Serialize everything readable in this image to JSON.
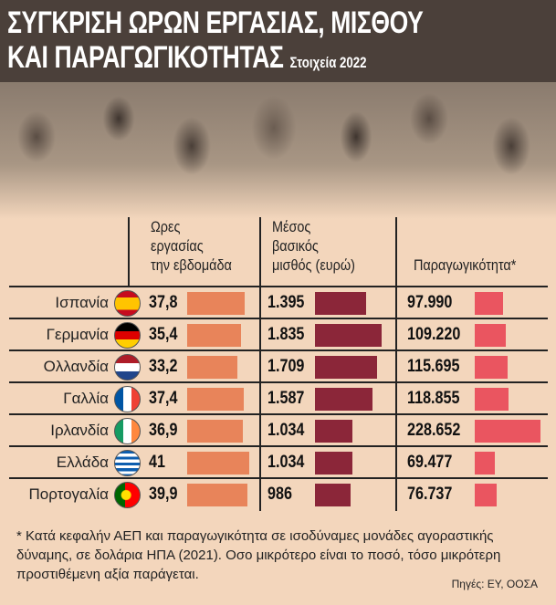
{
  "title": {
    "line1": "ΣΥΓΚΡΙΣΗ ΩΡΩΝ ΕΡΓΑΣΙΑΣ, ΜΙΣΘΟΥ",
    "line2": "ΚΑΙ ΠΑΡΑΓΩΓΙΚΟΤΗΤΑΣ",
    "subtitle": "Στοιχεία 2022"
  },
  "chart_data": {
    "type": "table",
    "columns": [
      {
        "label": [
          "Ωρες",
          "εργασίας",
          "την εβδομάδα"
        ],
        "color": "#e8845a"
      },
      {
        "label": [
          "Μέσος",
          "βασικός",
          "μισθός (ευρώ)"
        ],
        "color": "#8b2639"
      },
      {
        "label": [
          "Παραγωγικότητα*"
        ],
        "color": "#ea5560"
      }
    ],
    "rows": [
      {
        "country": "Ισπανία",
        "flag": "spain-flag",
        "hours": "37,8",
        "salary": "1.395",
        "productivity": "97.990",
        "v": [
          37.8,
          1395,
          97990
        ]
      },
      {
        "country": "Γερμανία",
        "flag": "germany-flag",
        "hours": "35,4",
        "salary": "1.835",
        "productivity": "109.220",
        "v": [
          35.4,
          1835,
          109220
        ]
      },
      {
        "country": "Ολλανδία",
        "flag": "netherlands-flag",
        "hours": "33,2",
        "salary": "1.709",
        "productivity": "115.695",
        "v": [
          33.2,
          1709,
          115695
        ]
      },
      {
        "country": "Γαλλία",
        "flag": "france-flag",
        "hours": "37,4",
        "salary": "1.587",
        "productivity": "118.855",
        "v": [
          37.4,
          1587,
          118855
        ]
      },
      {
        "country": "Ιρλανδία",
        "flag": "ireland-flag",
        "hours": "36,9",
        "salary": "1.034",
        "productivity": "228.652",
        "v": [
          36.9,
          1034,
          228652
        ]
      },
      {
        "country": "Ελλάδα",
        "flag": "greece-flag",
        "hours": "41",
        "salary": "1.034",
        "productivity": "69.477",
        "v": [
          41,
          1034,
          69477
        ]
      },
      {
        "country": "Πορτογαλία",
        "flag": "portugal-flag",
        "hours": "39,9",
        "salary": "986",
        "productivity": "76.737",
        "v": [
          39.9,
          986,
          76737
        ]
      }
    ]
  },
  "footnote": "* Κατά κεφαλήν ΑΕΠ και παραγωγικότητα σε ισοδύναμες μονάδες αγοραστικής δύναμης, σε δολάρια ΗΠΑ (2021). Οσο μικρότερο είναι το ποσό, τόσο μικρότερη προστιθέμενη αξία παράγεται.",
  "source": "Πηγές: ΕΥ, ΟΟΣΑ"
}
